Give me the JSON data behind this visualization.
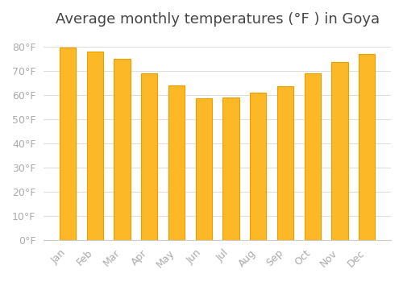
{
  "title": "Average monthly temperatures (°F ) in Goya",
  "months": [
    "Jan",
    "Feb",
    "Mar",
    "Apr",
    "May",
    "Jun",
    "Jul",
    "Aug",
    "Sep",
    "Oct",
    "Nov",
    "Dec"
  ],
  "values": [
    79.5,
    78.0,
    75.0,
    69.0,
    64.0,
    58.5,
    59.0,
    61.0,
    63.5,
    69.0,
    73.5,
    77.0
  ],
  "bar_color": "#FDB827",
  "bar_edge_color": "#E8A000",
  "background_color": "#FFFFFF",
  "grid_color": "#DDDDDD",
  "yticks": [
    0,
    10,
    20,
    30,
    40,
    50,
    60,
    70,
    80
  ],
  "ylim": [
    0,
    85
  ],
  "title_fontsize": 13,
  "tick_label_fontsize": 9,
  "tick_label_color": "#AAAAAA",
  "title_color": "#444444"
}
